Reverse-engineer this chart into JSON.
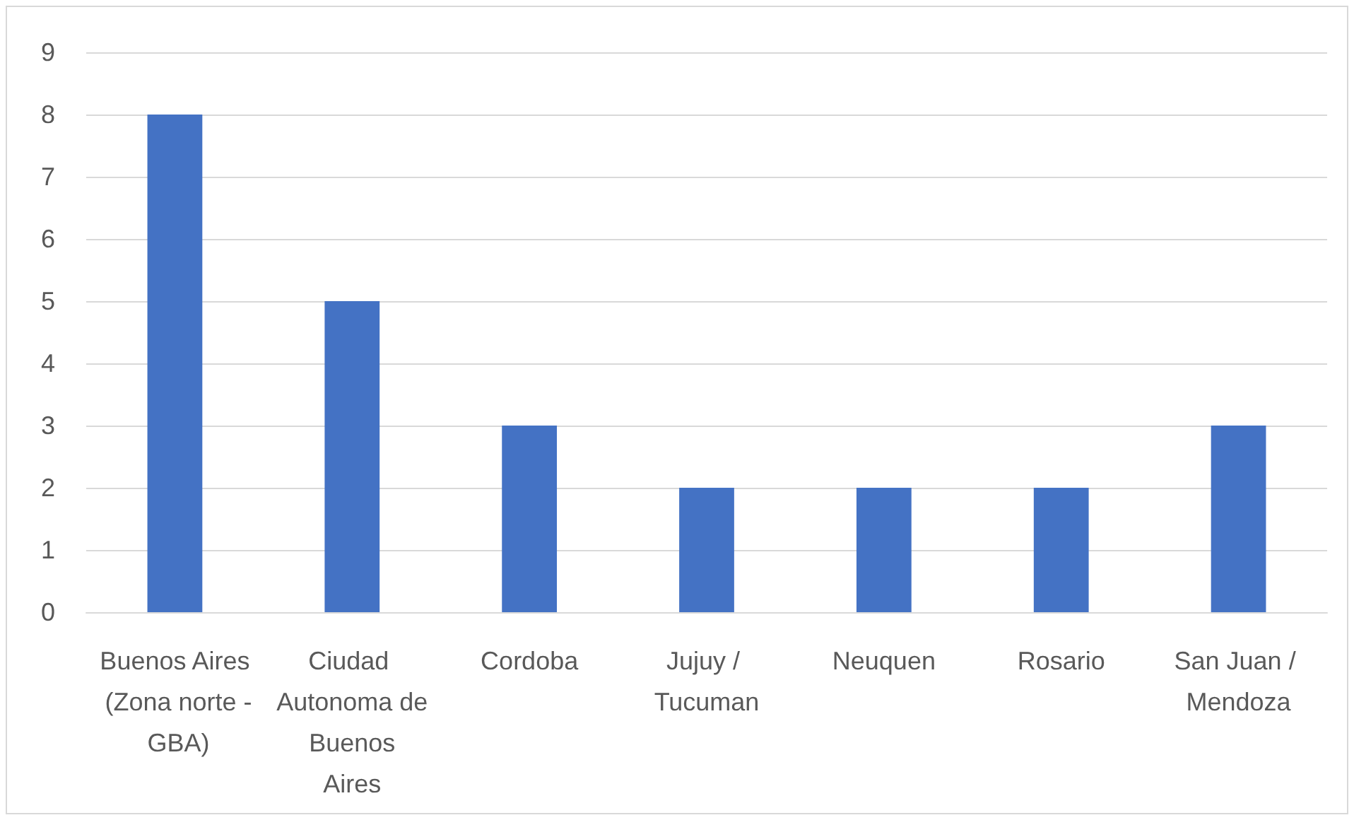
{
  "chart_data": {
    "type": "bar",
    "categories": [
      "Buenos Aires (Zona norte - GBA)",
      "Ciudad Autonoma de Buenos Aires",
      "Cordoba",
      "Jujuy / Tucuman",
      "Neuquen",
      "Rosario",
      "San Juan / Mendoza"
    ],
    "values": [
      8,
      5,
      3,
      2,
      2,
      2,
      3
    ],
    "color": "#4472c4",
    "ylim": [
      0,
      9
    ],
    "yticks": [
      0,
      1,
      2,
      3,
      4,
      5,
      6,
      7,
      8,
      9
    ],
    "grid": "y"
  }
}
